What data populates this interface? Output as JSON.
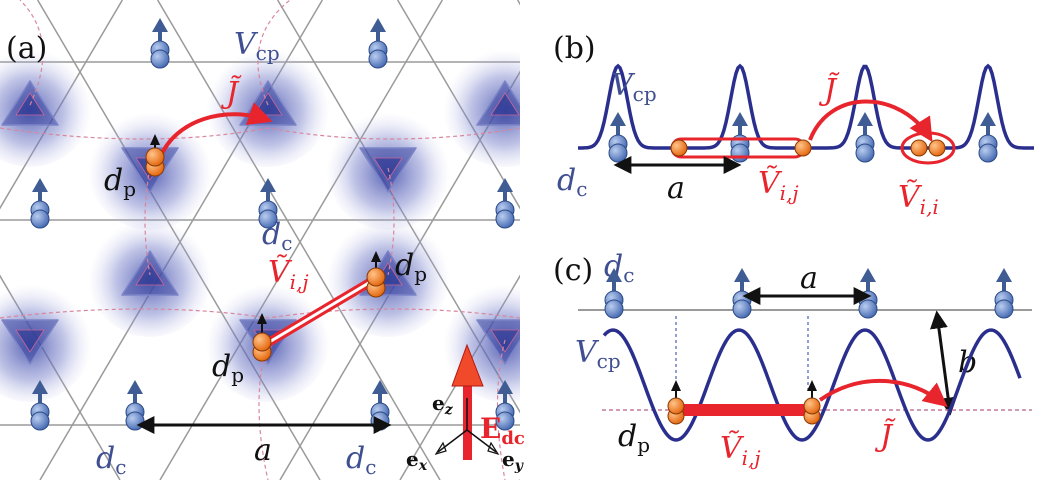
{
  "colors": {
    "lattice": "#9a9a9a",
    "site_blue": "#5b7ec4",
    "spin_arrow": "#4a6ba3",
    "potential": "#2a2f8e",
    "particle": "#ea7a25",
    "red": "#e8242c",
    "black": "#111111",
    "dashed": "#d9a0b0"
  },
  "panel_a": {
    "label": "(a)",
    "vcp_main": "V",
    "vcp_sub": "cp",
    "j_label": "J̃",
    "dp_main": "d",
    "dp_sub": "p",
    "dc_main": "d",
    "dc_sub": "c",
    "vij_main": "Ṽ",
    "vij_sub": "i,j",
    "a_label": "a",
    "ez_main": "e",
    "ez_sub": "z",
    "ex_main": "e",
    "ex_sub": "x",
    "ey_main": "e",
    "ey_sub": "y",
    "edc_main": "E",
    "edc_sub": "dc"
  },
  "panel_b": {
    "label": "(b)",
    "vcp_main": "V",
    "vcp_sub": "cp",
    "j_label": "J̃",
    "dc_main": "d",
    "dc_sub": "c",
    "a_label": "a",
    "vij_main": "Ṽ",
    "vij_sub": "i,j",
    "vii_main": "Ṽ",
    "vii_sub": "i,i"
  },
  "panel_c": {
    "label": "(c)",
    "dc_main": "d",
    "dc_sub": "c",
    "a_label": "a",
    "b_label": "b",
    "vcp_main": "V",
    "vcp_sub": "cp",
    "j_label": "J̃",
    "dp_main": "d",
    "dp_sub": "p",
    "vij_main": "Ṽ",
    "vij_sub": "i,j"
  }
}
